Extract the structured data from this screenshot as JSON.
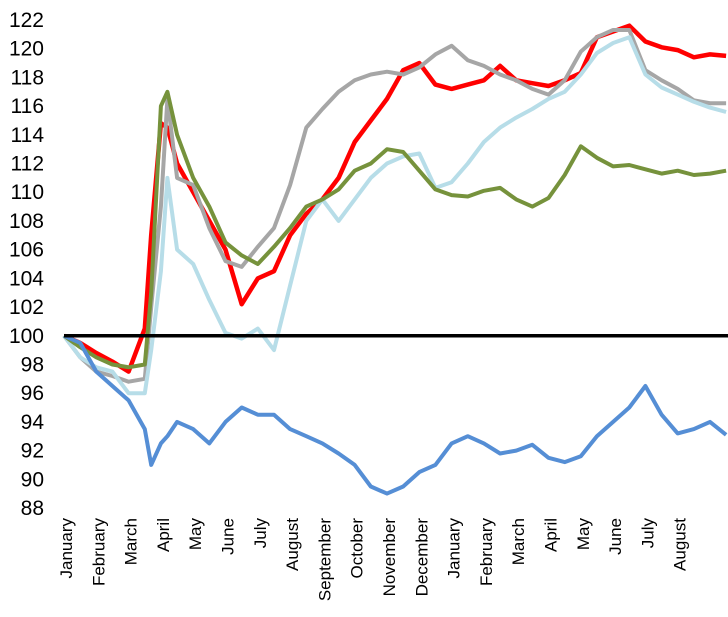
{
  "chart_data": {
    "type": "line",
    "title": "",
    "xlabel": "",
    "ylabel": "",
    "ylim": [
      88,
      122
    ],
    "yticks": [
      88,
      90,
      92,
      94,
      96,
      98,
      100,
      102,
      104,
      106,
      108,
      110,
      112,
      114,
      116,
      118,
      120,
      122
    ],
    "baseline": 100,
    "grid": false,
    "legend": "none",
    "x": [
      0,
      0.5,
      1,
      1.5,
      2,
      2.5,
      2.7,
      3,
      3.2,
      3.5,
      4,
      4.5,
      5,
      5.5,
      6,
      6.5,
      7,
      7.5,
      8,
      8.5,
      9,
      9.5,
      10,
      10.5,
      11,
      11.5,
      12,
      12.5,
      13,
      13.5,
      14,
      14.5,
      15,
      15.5,
      16,
      16.5,
      17,
      17.5,
      18,
      18.5,
      19,
      19.5,
      20,
      20.5
    ],
    "month_labels": [
      "January",
      "February",
      "March",
      "April",
      "May",
      "June",
      "July",
      "August",
      "September",
      "October",
      "November",
      "December",
      "January",
      "February",
      "March",
      "April",
      "May",
      "June",
      "July",
      "August"
    ],
    "series": [
      {
        "color": "#ff0000",
        "values": [
          100,
          99.5,
          98.8,
          98.2,
          97.5,
          100.5,
          107,
          114.8,
          114.5,
          112,
          110,
          108,
          106,
          102.2,
          104,
          104.5,
          107,
          108.5,
          109.5,
          111,
          113.5,
          115,
          116.5,
          118.5,
          119,
          117.5,
          117.2,
          117.5,
          117.8,
          118.8,
          117.8,
          117.6,
          117.4,
          117.8,
          118.3,
          120.8,
          121.2,
          121.6,
          120.5,
          120.1,
          119.9,
          119.4,
          119.6,
          119.5
        ]
      },
      {
        "color": "#a6a6a6",
        "values": [
          100,
          98.5,
          97.5,
          97.2,
          96.8,
          97,
          102,
          109,
          116.5,
          111,
          110.5,
          107.5,
          105.2,
          104.8,
          106.2,
          107.5,
          110.5,
          114.5,
          115.8,
          117,
          117.8,
          118.2,
          118.4,
          118.2,
          118.7,
          119.6,
          120.2,
          119.2,
          118.8,
          118.2,
          117.8,
          117.2,
          116.8,
          117.8,
          119.8,
          120.8,
          121.3,
          121.3,
          118.5,
          117.8,
          117.2,
          116.4,
          116.2,
          116.2
        ]
      },
      {
        "color": "#b7dde8",
        "values": [
          100,
          98.5,
          97.8,
          97.5,
          96,
          96,
          99,
          104.5,
          111,
          106,
          105,
          102.5,
          100.2,
          99.8,
          100.5,
          99,
          103.5,
          108,
          109.5,
          108,
          109.5,
          111,
          112,
          112.5,
          112.7,
          110.3,
          110.7,
          112,
          113.5,
          114.5,
          115.2,
          115.8,
          116.5,
          117,
          118.2,
          119.7,
          120.4,
          120.8,
          118.2,
          117.3,
          116.8,
          116.3,
          115.9,
          115.6
        ]
      },
      {
        "color": "#76923c",
        "values": [
          100,
          99.2,
          98.5,
          98,
          97.8,
          98,
          103,
          116,
          117,
          114,
          111,
          109,
          106.5,
          105.6,
          105,
          106.2,
          107.5,
          109,
          109.5,
          110.2,
          111.5,
          112,
          113,
          112.8,
          111.5,
          110.2,
          109.8,
          109.7,
          110.1,
          110.3,
          109.5,
          109,
          109.6,
          111.2,
          113.2,
          112.4,
          111.8,
          111.9,
          111.6,
          111.3,
          111.5,
          111.2,
          111.3,
          111.5
        ]
      },
      {
        "color": "#558ed5",
        "values": [
          100,
          99.5,
          97.5,
          96.5,
          95.5,
          93.5,
          91,
          92.5,
          93,
          94,
          93.5,
          92.5,
          94,
          95,
          94.5,
          94.5,
          93.5,
          93,
          92.5,
          91.8,
          91,
          89.5,
          89,
          89.5,
          90.5,
          91,
          92.5,
          93,
          92.5,
          91.8,
          92,
          92.4,
          91.5,
          91.2,
          91.6,
          93,
          94,
          95,
          96.5,
          94.5,
          93.2,
          93.5,
          94,
          93.1
        ]
      }
    ]
  }
}
